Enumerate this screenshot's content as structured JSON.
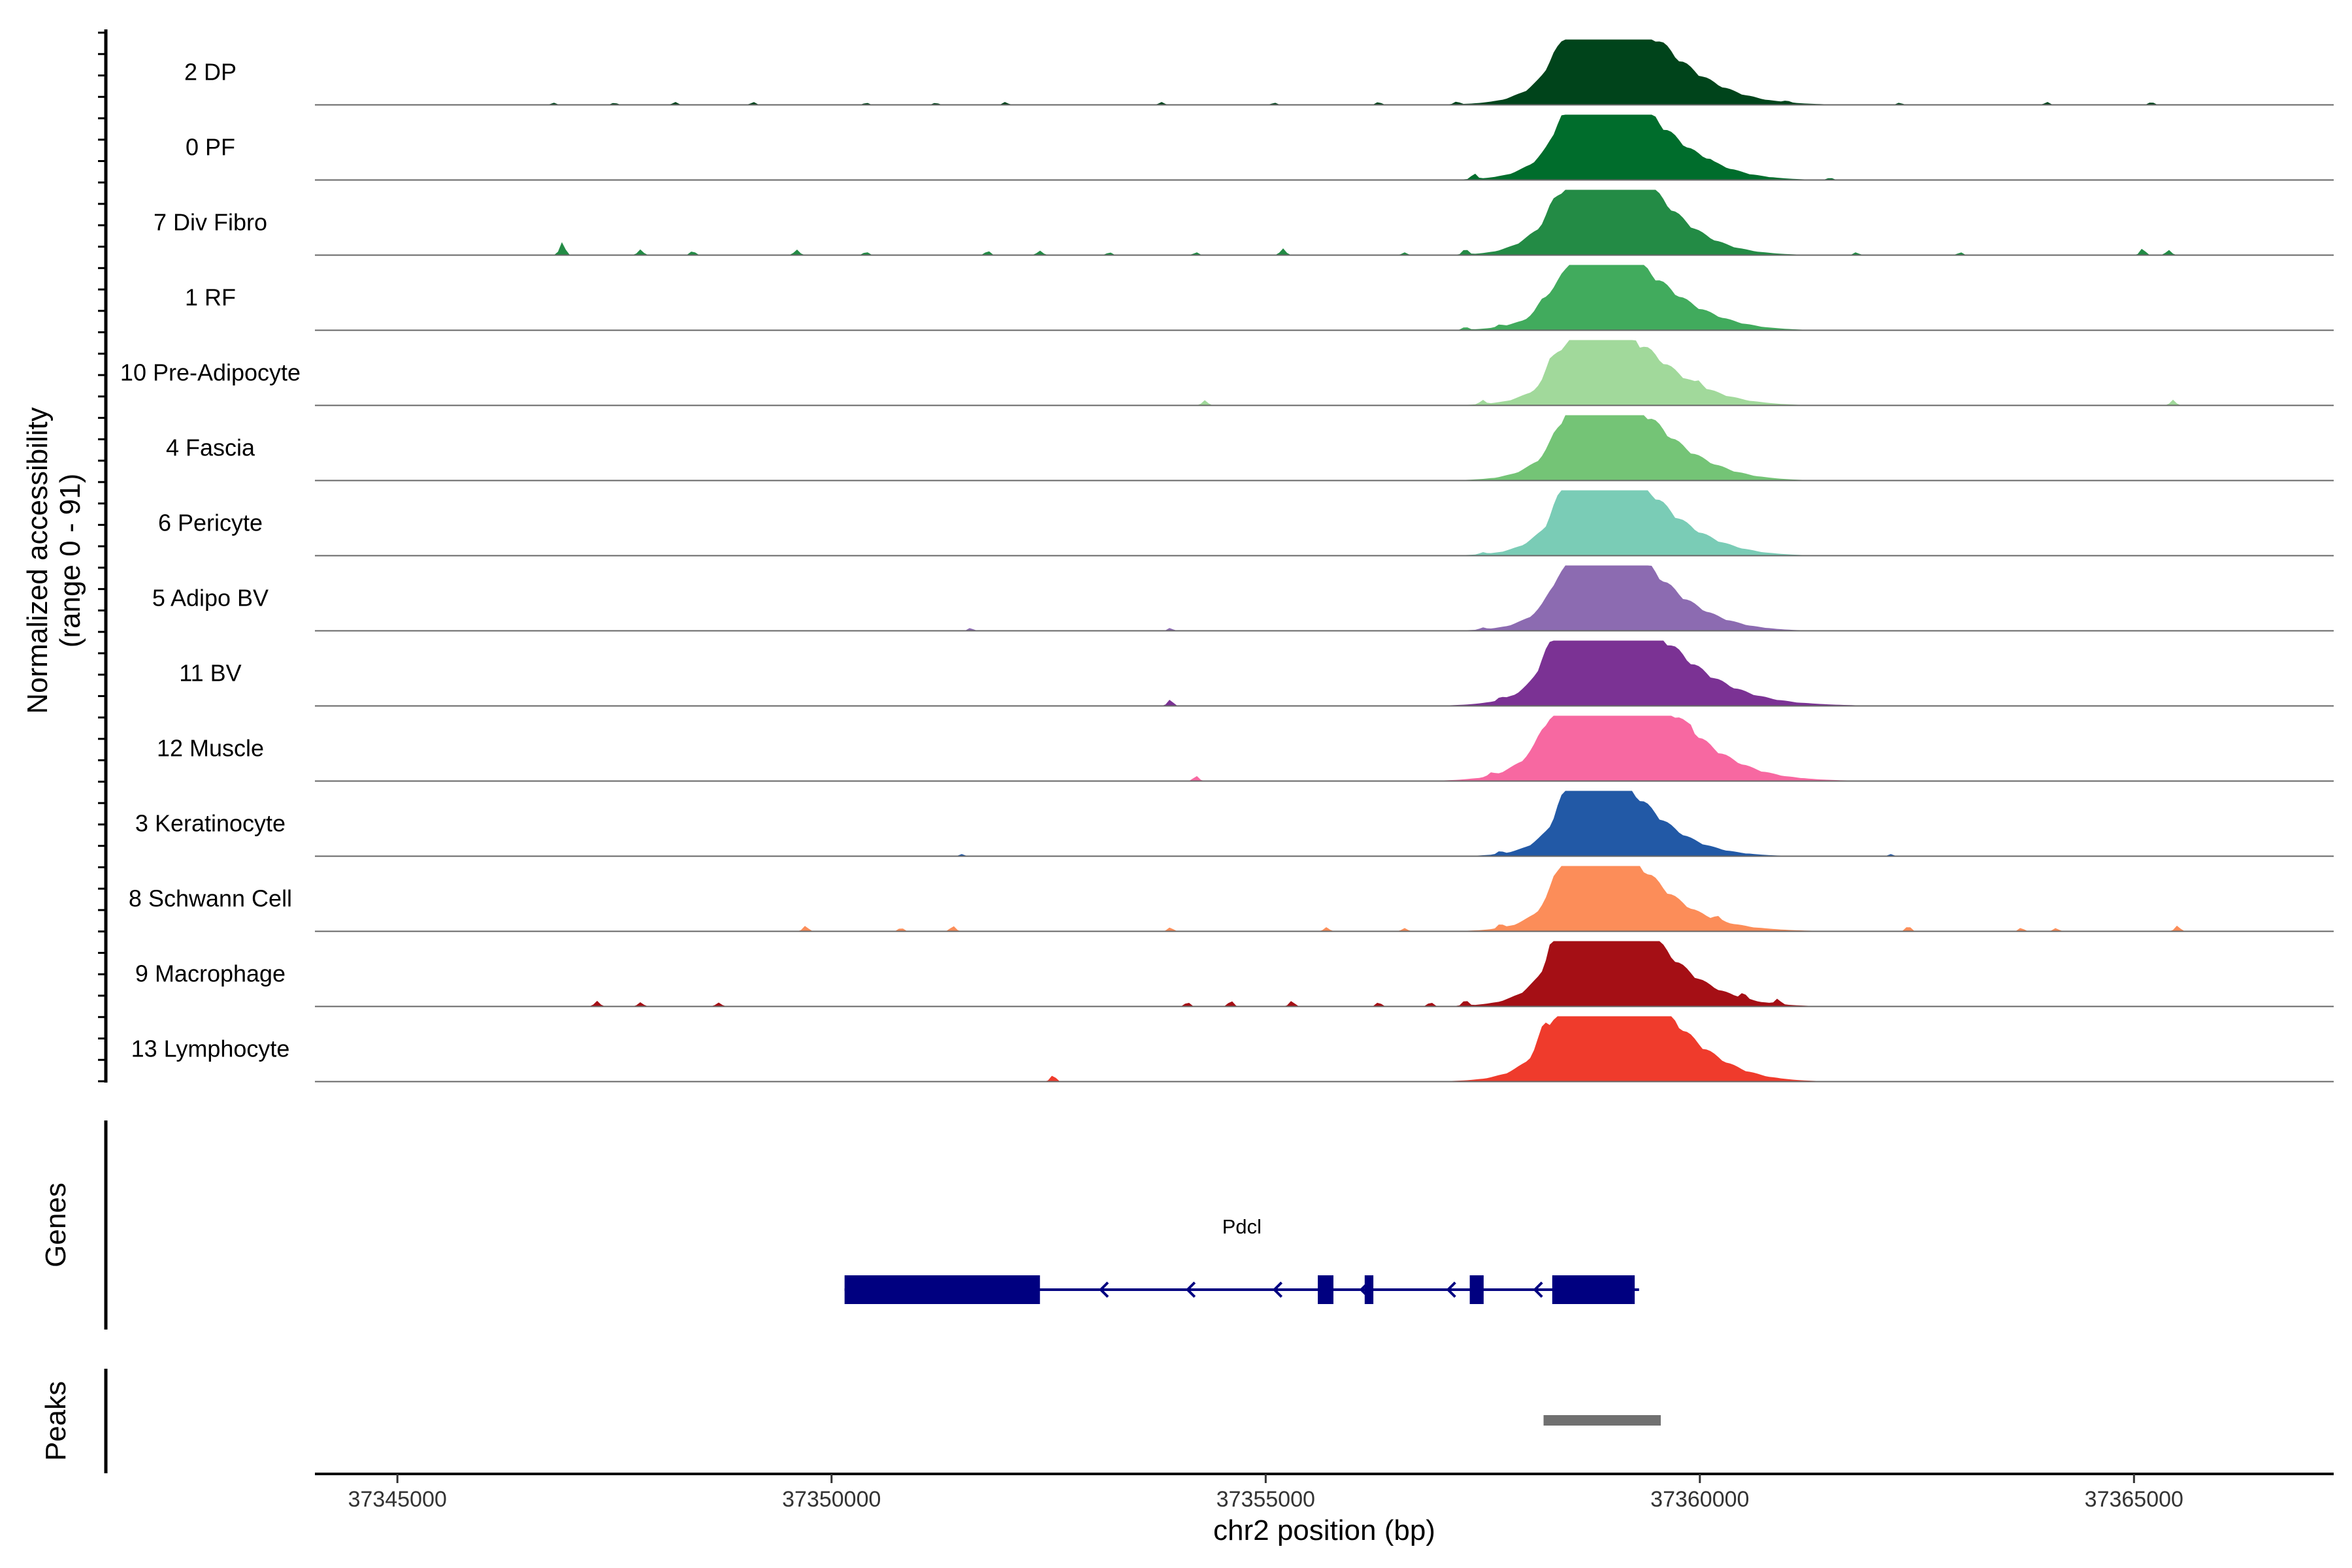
{
  "chart_data": {
    "type": "area",
    "chromosome": "chr2",
    "xlabel": "chr2 position (bp)",
    "ylabel_line1": "Normalized accessibility",
    "ylabel_line2": "(range 0 - 91)",
    "xlim": [
      37344050,
      37367300
    ],
    "xticks": [
      37345000,
      37350000,
      37355000,
      37360000,
      37365000
    ],
    "xtick_labels": [
      "37345000",
      "37350000",
      "37355000",
      "37360000",
      "37365000"
    ],
    "ylim": [
      0,
      91
    ],
    "y_minor_tick_count": 50,
    "series": [
      {
        "name": "2 DP",
        "color": "#00441B",
        "peaks": [
          [
            37358300,
            37358200,
            10
          ],
          [
            37358650,
            37358350,
            32
          ],
          [
            37358900,
            37358220,
            78
          ],
          [
            37359250,
            37358180,
            66
          ],
          [
            37359450,
            37358050,
            8
          ]
        ],
        "background": [
          [
            37346800,
            3
          ],
          [
            37347500,
            3
          ],
          [
            37348200,
            4
          ],
          [
            37349100,
            4
          ],
          [
            37350400,
            3
          ],
          [
            37351200,
            3
          ],
          [
            37352000,
            4
          ],
          [
            37353800,
            4
          ],
          [
            37355100,
            3
          ],
          [
            37356300,
            4
          ],
          [
            37357200,
            4
          ],
          [
            37361000,
            3
          ],
          [
            37362300,
            3
          ],
          [
            37364000,
            4
          ],
          [
            37365200,
            4
          ]
        ]
      },
      {
        "name": "0 PF",
        "color": "#006D2C",
        "peaks": [
          [
            37358350,
            37358250,
            10
          ],
          [
            37358650,
            37358350,
            38
          ],
          [
            37358900,
            37358220,
            78
          ],
          [
            37359250,
            37358180,
            64
          ]
        ],
        "background": [
          [
            37357400,
            8
          ],
          [
            37360100,
            3
          ],
          [
            37361500,
            3
          ]
        ]
      },
      {
        "name": "7 Div Fibro",
        "color": "#238B45",
        "peaks": [
          [
            37358300,
            37358250,
            10
          ],
          [
            37358600,
            37358350,
            38
          ],
          [
            37358900,
            37358120,
            91
          ],
          [
            37359250,
            37358200,
            52
          ]
        ],
        "background": [
          [
            37346900,
            20
          ],
          [
            37347800,
            8
          ],
          [
            37348400,
            6
          ],
          [
            37349600,
            8
          ],
          [
            37350400,
            5
          ],
          [
            37351800,
            6
          ],
          [
            37352400,
            7
          ],
          [
            37353200,
            4
          ],
          [
            37354200,
            4
          ],
          [
            37355200,
            10
          ],
          [
            37356600,
            4
          ],
          [
            37357300,
            8
          ],
          [
            37361800,
            4
          ],
          [
            37363000,
            4
          ],
          [
            37365100,
            10
          ],
          [
            37365400,
            8
          ]
        ]
      },
      {
        "name": "1 RF",
        "color": "#41AB5D",
        "peaks": [
          [
            37358200,
            37358150,
            12
          ],
          [
            37358600,
            37358300,
            36
          ],
          [
            37358900,
            37358220,
            66
          ],
          [
            37359250,
            37358170,
            56
          ]
        ],
        "background": [
          [
            37357300,
            4
          ],
          [
            37357700,
            4
          ]
        ]
      },
      {
        "name": "10 Pre-Adipocyte",
        "color": "#A1D99B",
        "peaks": [
          [
            37358300,
            37358250,
            28
          ],
          [
            37358650,
            37358350,
            36
          ],
          [
            37358900,
            37358200,
            64
          ],
          [
            37359250,
            37358180,
            50
          ]
        ],
        "background": [
          [
            37354300,
            8
          ],
          [
            37357500,
            6
          ],
          [
            37360000,
            6
          ],
          [
            37365450,
            8
          ]
        ]
      },
      {
        "name": "4 Fascia",
        "color": "#74C476",
        "peaks": [
          [
            37358350,
            37358250,
            10
          ],
          [
            37358650,
            37358350,
            38
          ],
          [
            37358900,
            37358220,
            74
          ],
          [
            37359250,
            37358180,
            60
          ]
        ],
        "background": []
      },
      {
        "name": "6 Pericyte",
        "color": "#7ACCB6",
        "peaks": [
          [
            37358350,
            37358250,
            10
          ],
          [
            37358650,
            37358350,
            48
          ],
          [
            37358900,
            37358220,
            78
          ],
          [
            37359250,
            37358180,
            60
          ]
        ],
        "background": [
          [
            37357500,
            3
          ]
        ]
      },
      {
        "name": "5 Adipo BV",
        "color": "#8C6BB1",
        "peaks": [
          [
            37358300,
            37358250,
            10
          ],
          [
            37358600,
            37358300,
            28
          ],
          [
            37358900,
            37358220,
            76
          ],
          [
            37359250,
            37358200,
            60
          ]
        ],
        "background": [
          [
            37351600,
            4
          ],
          [
            37353900,
            4
          ],
          [
            37357500,
            3
          ]
        ]
      },
      {
        "name": "11 BV",
        "color": "#7B3294",
        "peaks": [
          [
            37358250,
            37358100,
            18
          ],
          [
            37358550,
            37358150,
            22
          ],
          [
            37358900,
            37358200,
            84
          ],
          [
            37359250,
            37358150,
            72
          ],
          [
            37359650,
            37358150,
            12
          ]
        ],
        "background": [
          [
            37353900,
            10
          ],
          [
            37357700,
            4
          ]
        ]
      },
      {
        "name": "12 Muscle",
        "color": "#F768A1",
        "peaks": [
          [
            37358200,
            37358150,
            14
          ],
          [
            37358600,
            37358150,
            18
          ],
          [
            37358900,
            37358150,
            91
          ],
          [
            37359250,
            37358120,
            86
          ],
          [
            37359600,
            37358150,
            10
          ]
        ],
        "background": [
          [
            37354200,
            8
          ],
          [
            37357600,
            4
          ],
          [
            37359900,
            6
          ]
        ]
      },
      {
        "name": "3 Keratinocyte",
        "color": "#2259A6",
        "peaks": [
          [
            37358400,
            37358300,
            14
          ],
          [
            37358700,
            37358350,
            44
          ],
          [
            37358900,
            37358220,
            70
          ],
          [
            37359200,
            37358200,
            40
          ]
        ],
        "background": [
          [
            37351500,
            3
          ],
          [
            37357700,
            4
          ],
          [
            37362200,
            3
          ]
        ]
      },
      {
        "name": "8 Schwann Cell",
        "color": "#FC8D59",
        "peaks": [
          [
            37358350,
            37358280,
            20
          ],
          [
            37358650,
            37358300,
            46
          ],
          [
            37358900,
            37358200,
            76
          ],
          [
            37359200,
            37358200,
            40
          ],
          [
            37359450,
            37358100,
            8
          ]
        ],
        "background": [
          [
            37349700,
            8
          ],
          [
            37350800,
            5
          ],
          [
            37351400,
            8
          ],
          [
            37353900,
            6
          ],
          [
            37355700,
            6
          ],
          [
            37356600,
            5
          ],
          [
            37357700,
            6
          ],
          [
            37360200,
            5
          ],
          [
            37362400,
            8
          ],
          [
            37363700,
            5
          ],
          [
            37364100,
            5
          ],
          [
            37365500,
            8
          ]
        ]
      },
      {
        "name": "9 Macrophage",
        "color": "#A50F15",
        "peaks": [
          [
            37358300,
            37358200,
            24
          ],
          [
            37358650,
            37358250,
            30
          ],
          [
            37358900,
            37358180,
            91
          ],
          [
            37359250,
            37358150,
            64
          ]
        ],
        "background": [
          [
            37347300,
            8
          ],
          [
            37347800,
            6
          ],
          [
            37348700,
            6
          ],
          [
            37354100,
            6
          ],
          [
            37354600,
            8
          ],
          [
            37355300,
            8
          ],
          [
            37356300,
            6
          ],
          [
            37356900,
            6
          ],
          [
            37357300,
            8
          ],
          [
            37360500,
            8
          ],
          [
            37360900,
            8
          ]
        ]
      },
      {
        "name": "13 Lymphocyte",
        "color": "#EF3B2C",
        "peaks": [
          [
            37358200,
            37358120,
            20
          ],
          [
            37358450,
            37358150,
            24
          ],
          [
            37358900,
            37358170,
            78
          ],
          [
            37359250,
            37358150,
            91
          ]
        ],
        "background": [
          [
            37352550,
            10
          ]
        ]
      }
    ],
    "genes": [
      {
        "name": "Pdcl",
        "strand": "-",
        "start": 37350150,
        "end": 37359300,
        "exons": [
          [
            37350150,
            37352400
          ],
          [
            37355600,
            37355780
          ],
          [
            37356140,
            37356240
          ],
          [
            37357350,
            37357510
          ],
          [
            37358300,
            37359250
          ]
        ],
        "arrows": [
          37353100,
          37354100,
          37355100,
          37356100,
          37357100,
          37358100
        ]
      }
    ],
    "peaks_track": [
      [
        37358200,
        37359550
      ]
    ],
    "track_labels": {
      "genes": "Genes",
      "peaks": "Peaks"
    },
    "colors": {
      "gene": "#000080",
      "peak": "#707070",
      "baseline": "#666666",
      "axis": "#000000"
    }
  }
}
